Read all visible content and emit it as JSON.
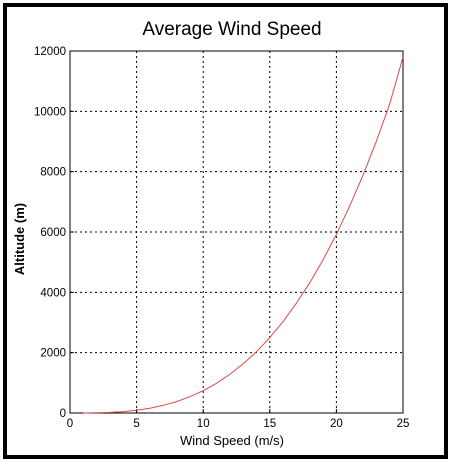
{
  "chart_data": {
    "type": "line",
    "title": "Average Wind Speed",
    "xlabel": "Wind Speed (m/s)",
    "ylabel": "Altitude (m)",
    "xlim": [
      0,
      25
    ],
    "ylim": [
      0,
      12000
    ],
    "xticks": [
      0,
      5,
      10,
      15,
      20,
      25
    ],
    "yticks": [
      0,
      2000,
      4000,
      6000,
      8000,
      10000,
      12000
    ],
    "grid": true,
    "series": [
      {
        "color": "#d94b4b",
        "x": [
          1,
          2,
          3,
          4,
          5,
          6,
          7,
          8,
          9,
          10,
          11,
          12,
          13,
          14,
          15,
          16,
          17,
          18,
          19,
          20,
          21,
          22,
          23,
          24,
          25
        ],
        "y": [
          1,
          6,
          20,
          47,
          92,
          160,
          254,
          379,
          540,
          740,
          986,
          1280,
          1630,
          2030,
          2500,
          3030,
          3640,
          4320,
          5080,
          5920,
          6860,
          7880,
          9010,
          10240,
          11800
        ]
      }
    ]
  }
}
